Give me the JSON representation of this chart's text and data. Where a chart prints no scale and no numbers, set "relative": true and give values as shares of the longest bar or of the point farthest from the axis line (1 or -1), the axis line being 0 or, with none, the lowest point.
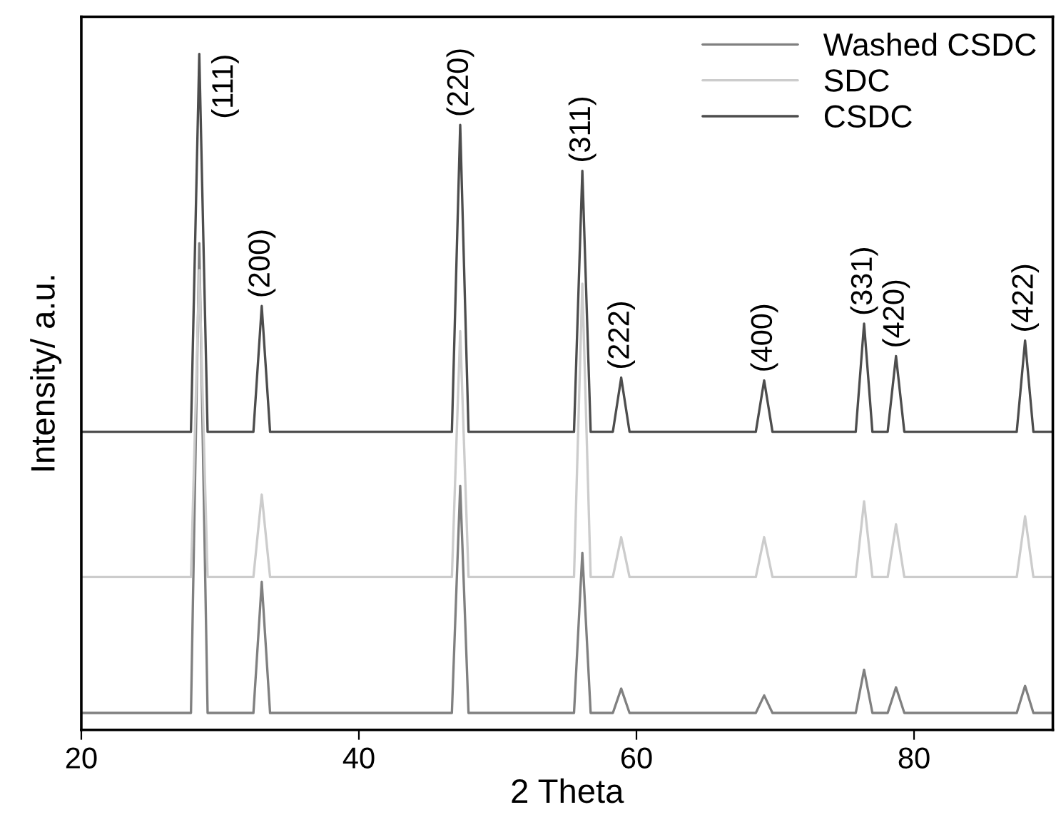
{
  "chart_data": {
    "type": "line",
    "relative": true,
    "xlabel": "2 Theta",
    "ylabel": "Intensity/ a.u.",
    "xlim": [
      20,
      90
    ],
    "xticks": [
      20,
      40,
      60,
      80
    ],
    "legend": "top right",
    "grid": false,
    "x": [
      20,
      27.9,
      28.5,
      29.1,
      32.4,
      33.0,
      33.6,
      46.7,
      47.3,
      47.9,
      55.5,
      56.1,
      56.7,
      58.3,
      58.9,
      59.5,
      68.6,
      69.2,
      69.8,
      75.8,
      76.4,
      77.0,
      78.1,
      78.7,
      79.3,
      87.4,
      88.0,
      88.6,
      90
    ],
    "series": [
      {
        "name": "Washed CSDC",
        "color": "#808080",
        "values": [
          0.025,
          0.025,
          0.72,
          0.025,
          0.025,
          0.219,
          0.025,
          0.025,
          0.361,
          0.025,
          0.025,
          0.262,
          0.025,
          0.025,
          0.061,
          0.025,
          0.025,
          0.051,
          0.025,
          0.025,
          0.089,
          0.025,
          0.025,
          0.063,
          0.025,
          0.025,
          0.065,
          0.025,
          0.025
        ]
      },
      {
        "name": "SDC",
        "color": "#cccccc",
        "values": [
          0.226,
          0.226,
          0.68,
          0.226,
          0.226,
          0.348,
          0.226,
          0.226,
          0.59,
          0.226,
          0.226,
          0.66,
          0.226,
          0.226,
          0.285,
          0.226,
          0.226,
          0.285,
          0.226,
          0.226,
          0.338,
          0.226,
          0.226,
          0.304,
          0.226,
          0.226,
          0.316,
          0.226,
          0.226
        ]
      },
      {
        "name": "CSDC",
        "color": "#4d4d4d",
        "values": [
          0.441,
          0.441,
          1.0,
          0.441,
          0.441,
          0.627,
          0.441,
          0.441,
          0.895,
          0.441,
          0.441,
          0.827,
          0.441,
          0.441,
          0.521,
          0.441,
          0.441,
          0.517,
          0.441,
          0.441,
          0.601,
          0.441,
          0.441,
          0.553,
          0.441,
          0.441,
          0.576,
          0.441,
          0.441
        ]
      }
    ],
    "annotations": [
      {
        "text": "(111)",
        "x": 28.5,
        "y": 1.0
      },
      {
        "text": "(200)",
        "x": 33.0,
        "y": 0.627
      },
      {
        "text": "(220)",
        "x": 47.3,
        "y": 0.895
      },
      {
        "text": "(311)",
        "x": 56.1,
        "y": 0.827
      },
      {
        "text": "(222)",
        "x": 58.9,
        "y": 0.521
      },
      {
        "text": "(400)",
        "x": 69.2,
        "y": 0.517
      },
      {
        "text": "(331)",
        "x": 76.4,
        "y": 0.601
      },
      {
        "text": "(420)",
        "x": 78.7,
        "y": 0.553
      },
      {
        "text": "(422)",
        "x": 88.0,
        "y": 0.576
      }
    ]
  }
}
